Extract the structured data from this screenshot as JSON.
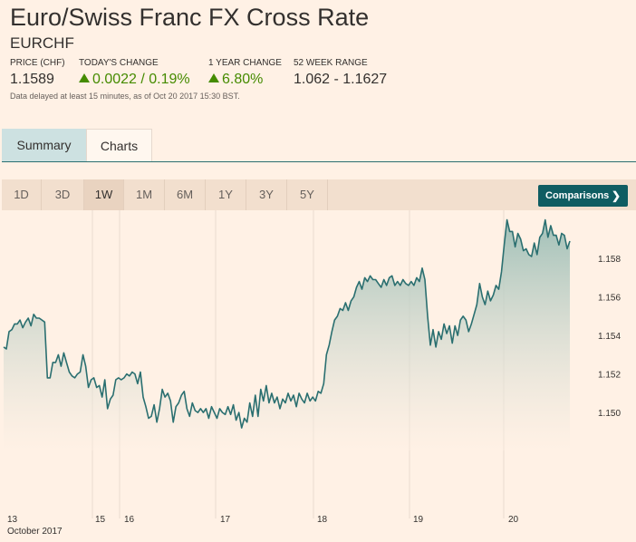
{
  "header": {
    "title": "Euro/Swiss Franc FX Cross Rate",
    "symbol": "EURCHF",
    "stats": [
      {
        "label": "PRICE (CHF)",
        "value": "1.1589",
        "trend": "none"
      },
      {
        "label": "TODAY'S CHANGE",
        "value": "0.0022 / 0.19%",
        "trend": "up"
      },
      {
        "label": "1 YEAR CHANGE",
        "value": "6.80%",
        "trend": "up"
      },
      {
        "label": "52 WEEK RANGE",
        "value": "1.062 - 1.1627",
        "trend": "none"
      }
    ],
    "delay_note": "Data delayed at least 15 minutes, as of Oct 20 2017 15:30 BST."
  },
  "tabs": [
    {
      "label": "Summary",
      "active": false
    },
    {
      "label": "Charts",
      "active": true
    }
  ],
  "periods": [
    {
      "label": "1D",
      "active": false
    },
    {
      "label": "3D",
      "active": false
    },
    {
      "label": "1W",
      "active": true
    },
    {
      "label": "1M",
      "active": false
    },
    {
      "label": "6M",
      "active": false
    },
    {
      "label": "1Y",
      "active": false
    },
    {
      "label": "3Y",
      "active": false
    },
    {
      "label": "5Y",
      "active": false
    }
  ],
  "comparisons_label": "Comparisons",
  "colors": {
    "background": "#fff1e5",
    "line": "#2a6f70",
    "fill": "#a7c4bc",
    "positive": "#458b00",
    "button": "#0f5d62"
  },
  "chart_data": {
    "type": "area",
    "title": "",
    "xlabel": "October 2017",
    "ylabel": "",
    "ylim": [
      1.1485,
      1.1605
    ],
    "y_ticks": [
      "1.158",
      "1.156",
      "1.154",
      "1.152",
      "1.150"
    ],
    "x_ticks": [
      "13",
      "15",
      "16",
      "17",
      "18",
      "19",
      "20"
    ],
    "x_unit_label": "October 2017",
    "grid": "vertical-day-separators",
    "series": [
      {
        "values": [
          1.1534,
          1.1533,
          1.1542,
          1.1543,
          1.1546,
          1.1546,
          1.1548,
          1.1544,
          1.1547,
          1.1549,
          1.1545,
          1.1551,
          1.1549,
          1.1549,
          1.1548,
          1.1547,
          1.1518,
          1.1518,
          1.1526,
          1.1526,
          1.153,
          1.1524,
          1.1531,
          1.1526,
          1.1521,
          1.1519,
          1.1518,
          1.152,
          1.1521,
          1.153,
          1.1524,
          1.1513,
          1.1517,
          1.1518,
          1.1513,
          1.1514,
          1.1508,
          1.1517,
          1.1502,
          1.1507,
          1.1509,
          1.1517,
          1.1518,
          1.1517,
          1.1518,
          1.152,
          1.1519,
          1.1521,
          1.152,
          1.1515,
          1.1521,
          1.1508,
          1.1503,
          1.1497,
          1.1498,
          1.1504,
          1.1495,
          1.1502,
          1.1512,
          1.1508,
          1.151,
          1.1506,
          1.1495,
          1.1503,
          1.1505,
          1.1509,
          1.1511,
          1.1502,
          1.1498,
          1.1505,
          1.1501,
          1.15,
          1.1502,
          1.15,
          1.1502,
          1.1497,
          1.1503,
          1.15,
          1.1497,
          1.1502,
          1.15,
          1.1499,
          1.1503,
          1.1499,
          1.1504,
          1.1496,
          1.15,
          1.1492,
          1.1497,
          1.1495,
          1.1505,
          1.1498,
          1.1509,
          1.1498,
          1.1512,
          1.1506,
          1.1514,
          1.1505,
          1.151,
          1.1505,
          1.1508,
          1.1502,
          1.1507,
          1.1505,
          1.151,
          1.1506,
          1.1509,
          1.1503,
          1.151,
          1.1507,
          1.1505,
          1.151,
          1.1506,
          1.1508,
          1.1506,
          1.1511,
          1.151,
          1.1515,
          1.153,
          1.1535,
          1.1542,
          1.1548,
          1.155,
          1.1554,
          1.1553,
          1.1557,
          1.1553,
          1.1558,
          1.156,
          1.1565,
          1.1568,
          1.1564,
          1.157,
          1.1568,
          1.1571,
          1.1569,
          1.1569,
          1.1567,
          1.1565,
          1.1569,
          1.1566,
          1.157,
          1.1571,
          1.1566,
          1.1568,
          1.1566,
          1.1569,
          1.1567,
          1.1566,
          1.1568,
          1.1566,
          1.157,
          1.1568,
          1.1575,
          1.1569,
          1.155,
          1.1535,
          1.1543,
          1.1534,
          1.1542,
          1.1538,
          1.1546,
          1.1541,
          1.1545,
          1.1536,
          1.1545,
          1.154,
          1.1548,
          1.155,
          1.1548,
          1.1542,
          1.1546,
          1.1551,
          1.1556,
          1.1567,
          1.156,
          1.1556,
          1.1563,
          1.1558,
          1.1561,
          1.1566,
          1.1564,
          1.1573,
          1.1587,
          1.16,
          1.1594,
          1.1594,
          1.1586,
          1.1593,
          1.159,
          1.1584,
          1.1585,
          1.1582,
          1.1581,
          1.1588,
          1.1582,
          1.1591,
          1.1593,
          1.16,
          1.1591,
          1.1597,
          1.1592,
          1.1592,
          1.1587,
          1.1593,
          1.1592,
          1.1585,
          1.1589
        ]
      }
    ]
  }
}
